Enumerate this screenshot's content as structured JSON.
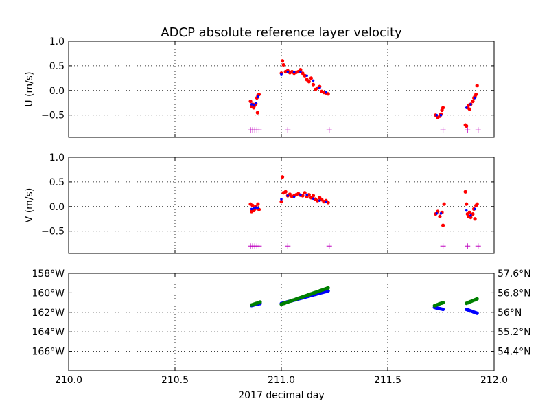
{
  "chart_data": {
    "title": "ADCP absolute reference layer velocity",
    "xlabel": "2017 decimal day",
    "xlim": [
      210.0,
      212.0
    ],
    "x_ticks": [
      "210.0",
      "210.5",
      "211.0",
      "211.5",
      "212.0"
    ],
    "x_tick_values": [
      210.0,
      210.5,
      211.0,
      211.5,
      212.0
    ],
    "panels": [
      {
        "id": "u",
        "type": "scatter",
        "ylabel": "U (m/s)",
        "ylim": [
          -0.95,
          1.0
        ],
        "y_ticks": [
          "1.0",
          "0.5",
          "0.0",
          "−0.5"
        ],
        "y_tick_values": [
          1.0,
          0.5,
          0.0,
          -0.5
        ],
        "grid": true,
        "series": [
          {
            "color": "#ff0000",
            "x": [
              210.855,
              210.86,
              210.865,
              210.87,
              210.875,
              210.88,
              210.885,
              210.89,
              210.895,
              210.888,
              211.0,
              211.005,
              211.01,
              211.02,
              211.03,
              211.04,
              211.05,
              211.06,
              211.07,
              211.08,
              211.09,
              211.1,
              211.11,
              211.12,
              211.13,
              211.14,
              211.15,
              211.16,
              211.17,
              211.18,
              211.19,
              211.2,
              211.21,
              211.22,
              211.725,
              211.735,
              211.745,
              211.75,
              211.755,
              211.76,
              211.865,
              211.87,
              211.875,
              211.88,
              211.885,
              211.89,
              211.9,
              211.905,
              211.91,
              211.915,
              211.92
            ],
            "y": [
              -0.22,
              -0.32,
              -0.28,
              -0.35,
              -0.3,
              -0.27,
              -0.15,
              -0.1,
              -0.08,
              -0.45,
              0.35,
              0.6,
              0.52,
              0.38,
              0.4,
              0.36,
              0.38,
              0.35,
              0.37,
              0.38,
              0.42,
              0.35,
              0.3,
              0.22,
              0.18,
              0.25,
              0.12,
              0.02,
              0.05,
              0.08,
              -0.02,
              -0.04,
              -0.05,
              -0.07,
              -0.5,
              -0.55,
              -0.52,
              -0.48,
              -0.4,
              -0.35,
              -0.7,
              -0.72,
              -0.35,
              -0.3,
              -0.38,
              -0.28,
              -0.22,
              -0.15,
              -0.12,
              -0.08,
              0.1
            ]
          },
          {
            "color": "#0000ff",
            "x": [
              210.86,
              210.87,
              210.88,
              210.89,
              211.0,
              211.03,
              211.06,
              211.09,
              211.12,
              211.15,
              211.18,
              211.21,
              211.73,
              211.75,
              211.87,
              211.89,
              211.91
            ],
            "y": [
              -0.28,
              -0.3,
              -0.26,
              -0.12,
              0.33,
              0.38,
              0.37,
              0.38,
              0.3,
              0.2,
              0.05,
              -0.04,
              -0.5,
              -0.5,
              -0.35,
              -0.28,
              -0.15
            ]
          }
        ],
        "markers": {
          "color": "#bf00bf",
          "symbol": "+",
          "y": -0.8,
          "x": [
            210.855,
            210.865,
            210.875,
            210.885,
            210.895,
            211.03,
            211.225,
            211.76,
            211.875,
            211.925
          ]
        }
      },
      {
        "id": "v",
        "type": "scatter",
        "ylabel": "V (m/s)",
        "ylim": [
          -0.95,
          1.0
        ],
        "y_ticks": [
          "1.0",
          "0.5",
          "0.0",
          "−0.5"
        ],
        "y_tick_values": [
          1.0,
          0.5,
          0.0,
          -0.5
        ],
        "grid": true,
        "series": [
          {
            "color": "#ff0000",
            "x": [
              210.855,
              210.86,
              210.865,
              210.87,
              210.875,
              210.88,
              210.885,
              210.89,
              210.895,
              211.0,
              211.005,
              211.01,
              211.02,
              211.03,
              211.04,
              211.05,
              211.06,
              211.07,
              211.08,
              211.09,
              211.1,
              211.11,
              211.12,
              211.13,
              211.14,
              211.15,
              211.16,
              211.17,
              211.18,
              211.19,
              211.2,
              211.21,
              211.22,
              211.725,
              211.735,
              211.745,
              211.755,
              211.76,
              211.765,
              211.865,
              211.87,
              211.875,
              211.88,
              211.885,
              211.89,
              211.9,
              211.905,
              211.91,
              211.915,
              211.92
            ],
            "y": [
              0.05,
              -0.1,
              0.02,
              -0.08,
              -0.05,
              0.0,
              -0.03,
              0.05,
              -0.06,
              0.1,
              0.6,
              0.28,
              0.3,
              0.22,
              0.25,
              0.2,
              0.22,
              0.24,
              0.26,
              0.23,
              0.22,
              0.28,
              0.2,
              0.24,
              0.18,
              0.22,
              0.15,
              0.12,
              0.18,
              0.14,
              0.1,
              0.12,
              0.08,
              -0.15,
              -0.1,
              -0.2,
              -0.12,
              -0.38,
              0.05,
              0.3,
              0.05,
              -0.15,
              -0.2,
              -0.12,
              -0.22,
              -0.15,
              -0.05,
              -0.25,
              0.02,
              0.05
            ]
          },
          {
            "color": "#0000ff",
            "x": [
              210.86,
              210.87,
              210.88,
              210.89,
              211.0,
              211.03,
              211.06,
              211.09,
              211.12,
              211.15,
              211.18,
              211.21,
              211.73,
              211.75,
              211.87,
              211.89,
              211.91
            ],
            "y": [
              -0.05,
              -0.04,
              -0.02,
              -0.03,
              0.15,
              0.22,
              0.2,
              0.24,
              0.24,
              0.16,
              0.12,
              0.1,
              -0.14,
              -0.14,
              -0.08,
              -0.18,
              -0.05
            ]
          }
        ],
        "markers": {
          "color": "#bf00bf",
          "symbol": "+",
          "y": -0.8,
          "x": [
            210.855,
            210.865,
            210.875,
            210.885,
            210.895,
            211.03,
            211.225,
            211.76,
            211.875,
            211.925
          ]
        }
      },
      {
        "id": "pos",
        "type": "scatter",
        "grid": true,
        "left_axis": {
          "color": "#0000ff",
          "ylim": [
            -168,
            -158
          ],
          "y_ticks": [
            "158°W",
            "160°W",
            "162°W",
            "164°W",
            "166°W"
          ],
          "y_tick_values": [
            -158,
            -160,
            -162,
            -164,
            -166
          ]
        },
        "right_axis": {
          "color": "#008000",
          "ylim": [
            53.6,
            57.6
          ],
          "y_ticks": [
            "57.6°N",
            "56.8°N",
            "56°N",
            "55.2°N",
            "54.4°N"
          ],
          "y_tick_values": [
            57.6,
            56.8,
            56.0,
            55.2,
            54.4
          ]
        },
        "series": [
          {
            "axis": "left",
            "color": "#0000ff",
            "segments": [
              {
                "x": [
                  210.86,
                  210.9
                ],
                "y": [
                  -161.3,
                  -161.1
                ]
              },
              {
                "x": [
                  211.0,
                  211.22
                ],
                "y": [
                  -161.1,
                  -159.8
                ]
              },
              {
                "x": [
                  211.72,
                  211.76
                ],
                "y": [
                  -161.5,
                  -161.7
                ]
              },
              {
                "x": [
                  211.87,
                  211.92
                ],
                "y": [
                  -161.7,
                  -162.1
                ]
              }
            ]
          },
          {
            "axis": "right",
            "color": "#008000",
            "segments": [
              {
                "x": [
                  210.86,
                  210.9
                ],
                "y": [
                  56.3,
                  56.42
                ]
              },
              {
                "x": [
                  211.0,
                  211.22
                ],
                "y": [
                  56.33,
                  57.0
                ]
              },
              {
                "x": [
                  211.72,
                  211.76
                ],
                "y": [
                  56.27,
                  56.4
                ]
              },
              {
                "x": [
                  211.87,
                  211.92
                ],
                "y": [
                  56.37,
                  56.55
                ]
              }
            ]
          }
        ]
      }
    ]
  }
}
